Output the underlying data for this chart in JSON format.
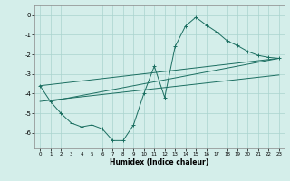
{
  "xlabel": "Humidex (Indice chaleur)",
  "background_color": "#d4eeea",
  "grid_color": "#aad4ce",
  "line_color": "#1a6e60",
  "xlim": [
    -0.5,
    23.5
  ],
  "ylim": [
    -6.8,
    0.5
  ],
  "xticks": [
    0,
    1,
    2,
    3,
    4,
    5,
    6,
    7,
    8,
    9,
    10,
    11,
    12,
    13,
    14,
    15,
    16,
    17,
    18,
    19,
    20,
    21,
    22,
    23
  ],
  "yticks": [
    0,
    -1,
    -2,
    -3,
    -4,
    -5,
    -6
  ],
  "main_x": [
    0,
    1,
    2,
    3,
    4,
    5,
    6,
    7,
    8,
    9,
    10,
    11,
    12,
    13,
    14,
    15,
    16,
    17,
    18,
    19,
    20,
    21,
    22,
    23
  ],
  "main_y": [
    -3.6,
    -4.4,
    -5.0,
    -5.5,
    -5.7,
    -5.6,
    -5.8,
    -6.4,
    -6.4,
    -5.6,
    -4.0,
    -2.6,
    -4.2,
    -1.6,
    -0.55,
    -0.1,
    -0.5,
    -0.85,
    -1.3,
    -1.55,
    -1.85,
    -2.05,
    -2.15,
    -2.2
  ],
  "line1_x": [
    0,
    23
  ],
  "line1_y": [
    -3.6,
    -2.2
  ],
  "line2_x": [
    1,
    23
  ],
  "line2_y": [
    -4.4,
    -2.2
  ],
  "line3_x": [
    0,
    23
  ],
  "line3_y": [
    -4.4,
    -3.05
  ]
}
